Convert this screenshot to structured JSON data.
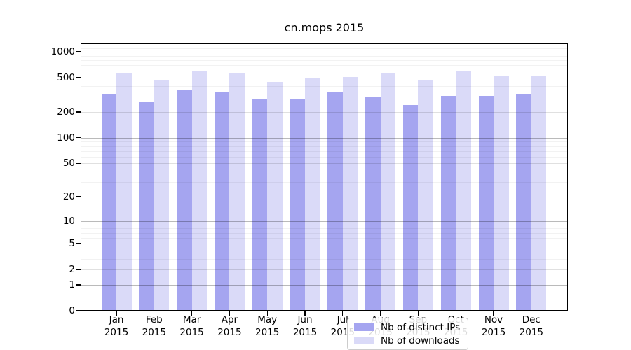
{
  "chart_data": {
    "type": "bar",
    "title": "cn.mops 2015",
    "categories": [
      "Jan 2015",
      "Feb 2015",
      "Mar 2015",
      "Apr 2015",
      "May 2015",
      "Jun 2015",
      "Jul 2015",
      "Aug 2015",
      "Sep 2015",
      "Oct 2015",
      "Nov 2015",
      "Dec 2015"
    ],
    "series": [
      {
        "name": "Nb of distinct IPs",
        "color": "#a5a5f0",
        "values": [
          320,
          265,
          366,
          340,
          287,
          282,
          338,
          300,
          241,
          310,
          306,
          324
        ]
      },
      {
        "name": "Nb of downloads",
        "color": "#dadaf8",
        "values": [
          571,
          465,
          596,
          557,
          450,
          492,
          511,
          561,
          465,
          596,
          520,
          534
        ]
      }
    ],
    "xlabel": "",
    "ylabel": "",
    "y_scale": "log10(1+value)",
    "y_ticks": [
      0,
      1,
      2,
      5,
      10,
      20,
      50,
      100,
      200,
      500,
      1000
    ],
    "y_minor_gridlines": [
      3,
      4,
      6,
      7,
      8,
      9,
      30,
      40,
      60,
      70,
      80,
      90,
      300,
      400,
      600,
      700,
      800,
      900,
      1100,
      1200
    ],
    "ylim": [
      0,
      1250
    ],
    "grid": true,
    "legend_position": "bottom center inside plot",
    "colors": {
      "background": "#ffffff",
      "axis": "#000000",
      "grid_major": "rgba(0,0,0,0.27)",
      "grid_mid": "rgba(0,0,0,0.12)",
      "grid_minor": "rgba(0,0,0,0.05)",
      "legend_border": "#cccccc"
    }
  }
}
